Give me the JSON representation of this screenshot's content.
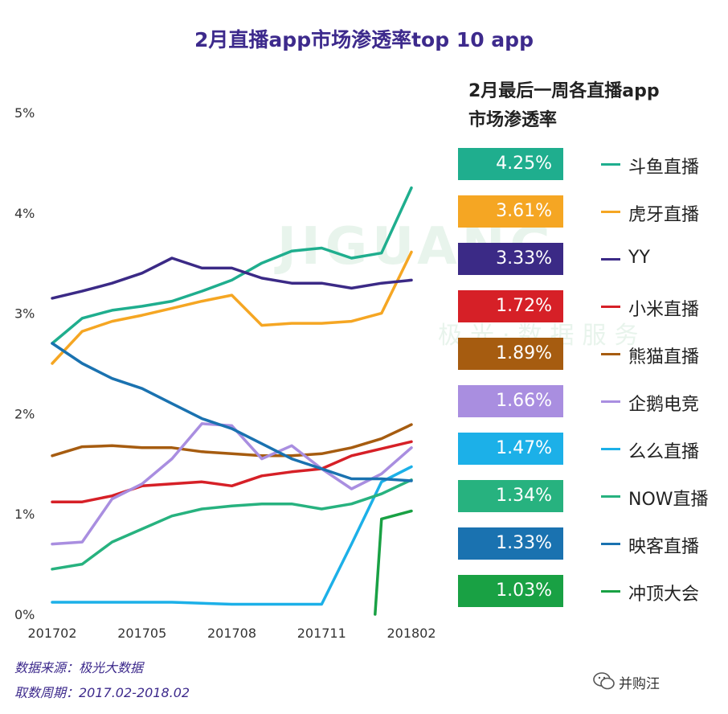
{
  "title": "2月直播app市场渗透率top 10 app",
  "legend_title_1": "2月最后一周各直播app",
  "legend_title_2": "市场渗透率",
  "source_line": "数据来源：极光大数据",
  "period_line": "取数周期：2017.02-2018.02",
  "watermark": "并购汪",
  "background_mark": "JIGUANG",
  "background_mark_sub": "极光·数据服务",
  "chart_data": {
    "type": "line",
    "title": "2月直播app市场渗透率top 10 app",
    "xlabel": "",
    "ylabel": "",
    "ylim": [
      0,
      5
    ],
    "y_unit": "%",
    "y_ticks": [
      "0%",
      "1%",
      "2%",
      "3%",
      "4%",
      "5%"
    ],
    "x_tick_labels": [
      "201702",
      "201705",
      "201708",
      "201711",
      "201802"
    ],
    "x": [
      "2017-02",
      "2017-03",
      "2017-04",
      "2017-05",
      "2017-06",
      "2017-07",
      "2017-08",
      "2017-09",
      "2017-10",
      "2017-11",
      "2017-12",
      "2018-01",
      "2018-02"
    ],
    "grid": false,
    "legend_position": "right",
    "series": [
      {
        "name": "斗鱼直播",
        "color": "#1fae8e",
        "last_week": "4.25%",
        "values": [
          2.7,
          2.95,
          3.03,
          3.07,
          3.12,
          3.22,
          3.33,
          3.5,
          3.62,
          3.65,
          3.55,
          3.6,
          4.25
        ]
      },
      {
        "name": "虎牙直播",
        "color": "#f5a623",
        "last_week": "3.61%",
        "values": [
          2.5,
          2.82,
          2.92,
          2.98,
          3.05,
          3.12,
          3.18,
          2.88,
          2.9,
          2.9,
          2.92,
          3.0,
          3.61
        ]
      },
      {
        "name": "YY",
        "color": "#3b2a86",
        "last_week": "3.33%",
        "values": [
          3.15,
          3.22,
          3.3,
          3.4,
          3.55,
          3.45,
          3.45,
          3.35,
          3.3,
          3.3,
          3.25,
          3.3,
          3.33
        ]
      },
      {
        "name": "小米直播",
        "color": "#d62027",
        "last_week": "1.72%",
        "values": [
          1.12,
          1.12,
          1.18,
          1.28,
          1.3,
          1.32,
          1.28,
          1.38,
          1.42,
          1.45,
          1.58,
          1.65,
          1.72
        ]
      },
      {
        "name": "熊猫直播",
        "color": "#a65c10",
        "last_week": "1.89%",
        "values": [
          1.58,
          1.67,
          1.68,
          1.66,
          1.66,
          1.62,
          1.6,
          1.58,
          1.58,
          1.6,
          1.66,
          1.75,
          1.89
        ]
      },
      {
        "name": "企鹅电竞",
        "color": "#a98ee0",
        "last_week": "1.66%",
        "values": [
          0.7,
          0.72,
          1.15,
          1.3,
          1.55,
          1.9,
          1.88,
          1.55,
          1.68,
          1.45,
          1.25,
          1.4,
          1.66
        ]
      },
      {
        "name": "么么直播",
        "color": "#1cb0e8",
        "last_week": "1.47%",
        "values": [
          0.12,
          0.12,
          0.12,
          0.12,
          0.12,
          0.11,
          0.1,
          0.1,
          0.1,
          0.1,
          0.7,
          1.32,
          1.47
        ]
      },
      {
        "name": "NOW直播",
        "color": "#27b27f",
        "last_week": "1.34%",
        "values": [
          0.45,
          0.5,
          0.72,
          0.85,
          0.98,
          1.05,
          1.08,
          1.1,
          1.1,
          1.05,
          1.1,
          1.2,
          1.34
        ]
      },
      {
        "name": "映客直播",
        "color": "#1a72b0",
        "last_week": "1.33%",
        "values": [
          2.7,
          2.5,
          2.35,
          2.25,
          2.1,
          1.95,
          1.85,
          1.7,
          1.55,
          1.45,
          1.35,
          1.35,
          1.33
        ]
      },
      {
        "name": "冲顶大会",
        "color": "#19a144",
        "last_week": "1.03%",
        "values": [
          null,
          null,
          null,
          null,
          null,
          null,
          null,
          null,
          null,
          null,
          null,
          0.95,
          1.03
        ]
      }
    ]
  }
}
